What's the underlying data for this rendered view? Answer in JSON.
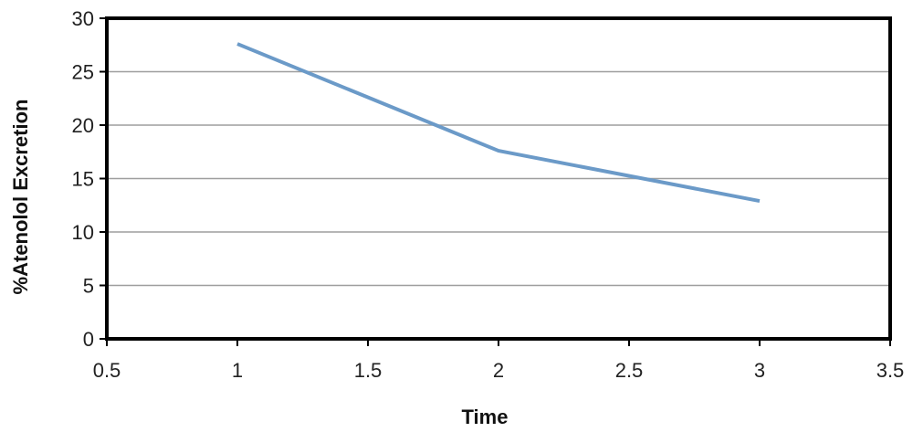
{
  "chart_data": {
    "type": "line",
    "title": "",
    "xlabel": "Time",
    "ylabel": "%Atenolol Excretion",
    "xlim": [
      0.5,
      3.5
    ],
    "ylim": [
      0,
      30
    ],
    "x_ticks": [
      "0.5",
      "1",
      "1.5",
      "2",
      "2.5",
      "3",
      "3.5"
    ],
    "y_ticks": [
      "0",
      "5",
      "10",
      "15",
      "20",
      "25",
      "30"
    ],
    "grid": "horizontal",
    "legend": "none",
    "series": [
      {
        "color": "#6b9ac8",
        "x": [
          1,
          2,
          3
        ],
        "y": [
          27.6,
          17.6,
          12.9
        ]
      }
    ]
  }
}
